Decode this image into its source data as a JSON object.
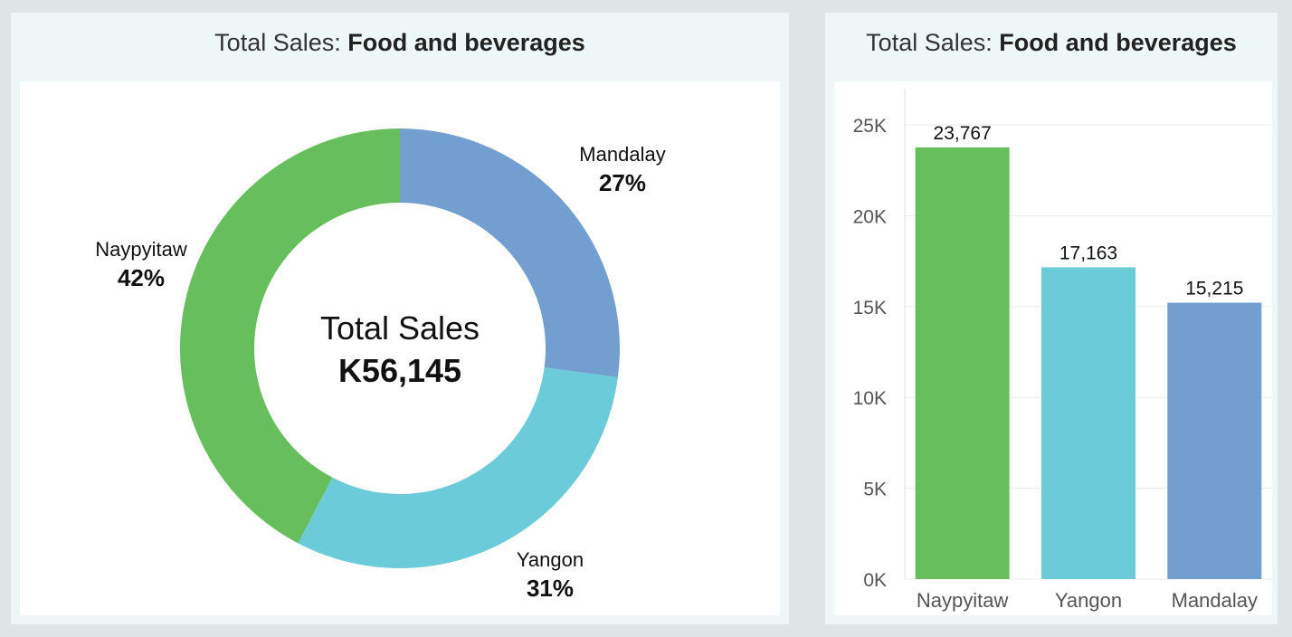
{
  "panels": {
    "donut": {
      "title_prefix": "Total Sales: ",
      "title_bold": "Food and beverages"
    },
    "bar": {
      "title_prefix": "Total Sales: ",
      "title_bold": "Food and beverages"
    }
  },
  "chart_data": [
    {
      "type": "pie",
      "subtype": "donut",
      "categories": [
        "Mandalay",
        "Yangon",
        "Naypyitaw"
      ],
      "values": [
        15215,
        17163,
        23767
      ],
      "percent_labels": [
        "27%",
        "31%",
        "42%"
      ],
      "colors": [
        "#729fcf",
        "#6bcbd9",
        "#67be5c"
      ],
      "center_label": "Total Sales",
      "center_value": "K56,145"
    },
    {
      "type": "bar",
      "categories": [
        "Naypyitaw",
        "Yangon",
        "Mandalay"
      ],
      "values": [
        23767,
        17163,
        15215
      ],
      "value_labels": [
        "23,767",
        "17,163",
        "15,215"
      ],
      "colors": [
        "#67be5c",
        "#6bcbd9",
        "#729fcf"
      ],
      "ylim": [
        0,
        26000
      ],
      "yticks": [
        0,
        5000,
        10000,
        15000,
        20000,
        25000
      ],
      "ytick_labels": [
        "0K",
        "5K",
        "10K",
        "15K",
        "20K",
        "25K"
      ],
      "grid": true
    }
  ]
}
